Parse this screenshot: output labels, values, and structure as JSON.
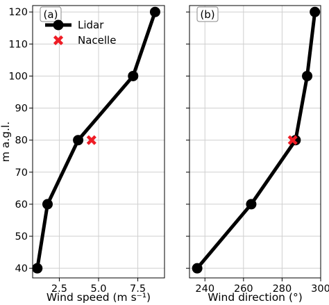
{
  "chart_data": [
    {
      "type": "line",
      "panel_label": "(a)",
      "xlabel": "Wind speed (m s⁻¹)",
      "ylabel": "m a.g.l.",
      "xlim": [
        0.8,
        9.2
      ],
      "ylim": [
        37,
        122
      ],
      "xticks": [
        2.5,
        5.0,
        7.5
      ],
      "xtick_labels": [
        "2.5",
        "5.0",
        "7.5"
      ],
      "yticks": [
        40,
        50,
        60,
        70,
        80,
        90,
        100,
        110,
        120
      ],
      "ytick_labels": [
        "40",
        "50",
        "60",
        "70",
        "80",
        "90",
        "100",
        "110",
        "120"
      ],
      "grid": true,
      "legend_position": "top-left",
      "series": [
        {
          "name": "Lidar",
          "style": "line-circle",
          "color": "#000000",
          "x": [
            1.1,
            1.75,
            3.7,
            7.2,
            8.6
          ],
          "y": [
            40,
            60,
            80,
            100,
            120
          ]
        },
        {
          "name": "Nacelle",
          "style": "x-marker",
          "color": "#ee1c25",
          "x": [
            4.55
          ],
          "y": [
            80
          ]
        }
      ]
    },
    {
      "type": "line",
      "panel_label": "(b)",
      "xlabel": "Wind direction (°)",
      "ylabel": "",
      "xlim": [
        232,
        300
      ],
      "ylim": [
        37,
        122
      ],
      "xticks": [
        240,
        260,
        280,
        300
      ],
      "xtick_labels": [
        "240",
        "260",
        "280",
        "300"
      ],
      "yticks": [
        40,
        50,
        60,
        70,
        80,
        90,
        100,
        110,
        120
      ],
      "grid": true,
      "series": [
        {
          "name": "Lidar",
          "style": "line-circle",
          "color": "#000000",
          "x": [
            236,
            264,
            287,
            293,
            297
          ],
          "y": [
            40,
            60,
            80,
            100,
            120
          ]
        },
        {
          "name": "Nacelle",
          "style": "x-marker",
          "color": "#ee1c25",
          "x": [
            285.5
          ],
          "y": [
            80
          ]
        }
      ]
    }
  ]
}
